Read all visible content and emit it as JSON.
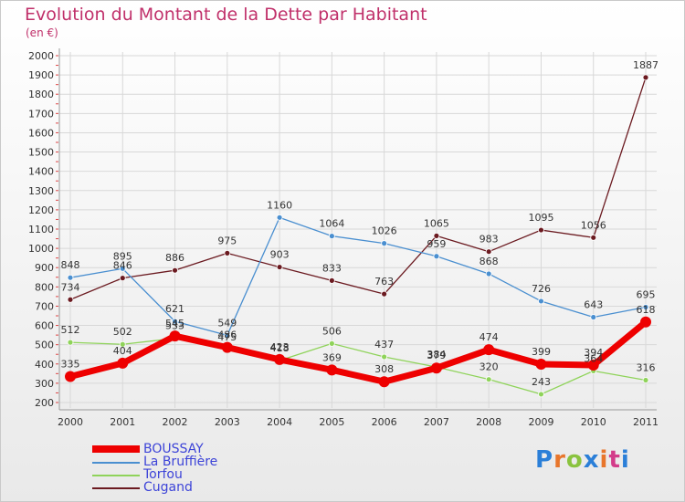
{
  "title": "Evolution du Montant de la Dette par Habitant",
  "subtitle": "(en €)",
  "logo": {
    "text": "Proxiti",
    "colors": [
      "#2b7fd8",
      "#e8762c",
      "#8ac33f",
      "#2b7fd8",
      "#e8762c",
      "#d33c8a",
      "#2b7fd8"
    ]
  },
  "chart_data": {
    "type": "line",
    "x": [
      "2000",
      "2001",
      "2002",
      "2003",
      "2004",
      "2005",
      "2006",
      "2007",
      "2008",
      "2009",
      "2010",
      "2011"
    ],
    "ylim": [
      200,
      2000
    ],
    "yticks": [
      200,
      300,
      400,
      500,
      600,
      700,
      800,
      900,
      1000,
      1100,
      1200,
      1300,
      1400,
      1500,
      1600,
      1700,
      1800,
      1900,
      2000
    ],
    "grid": true,
    "legend_position": "bottom-left",
    "series": [
      {
        "name": "Cugand",
        "color": "#6b1a20",
        "values": [
          734,
          846,
          886,
          975,
          903,
          833,
          763,
          1065,
          983,
          1095,
          1056,
          1887
        ]
      },
      {
        "name": "La Bruffière",
        "color": "#4a8fd0",
        "values": [
          848,
          895,
          621,
          549,
          1160,
          1064,
          1026,
          959,
          868,
          726,
          643,
          695
        ]
      },
      {
        "name": "Torfou",
        "color": "#8fd35a",
        "values": [
          512,
          502,
          533,
          475,
          418,
          506,
          437,
          384,
          320,
          243,
          364,
          316
        ]
      },
      {
        "name": "BOUSSAY",
        "color": "#ee0000",
        "values": [
          335,
          404,
          545,
          486,
          423,
          369,
          308,
          379,
          474,
          399,
          394,
          618
        ]
      }
    ]
  }
}
